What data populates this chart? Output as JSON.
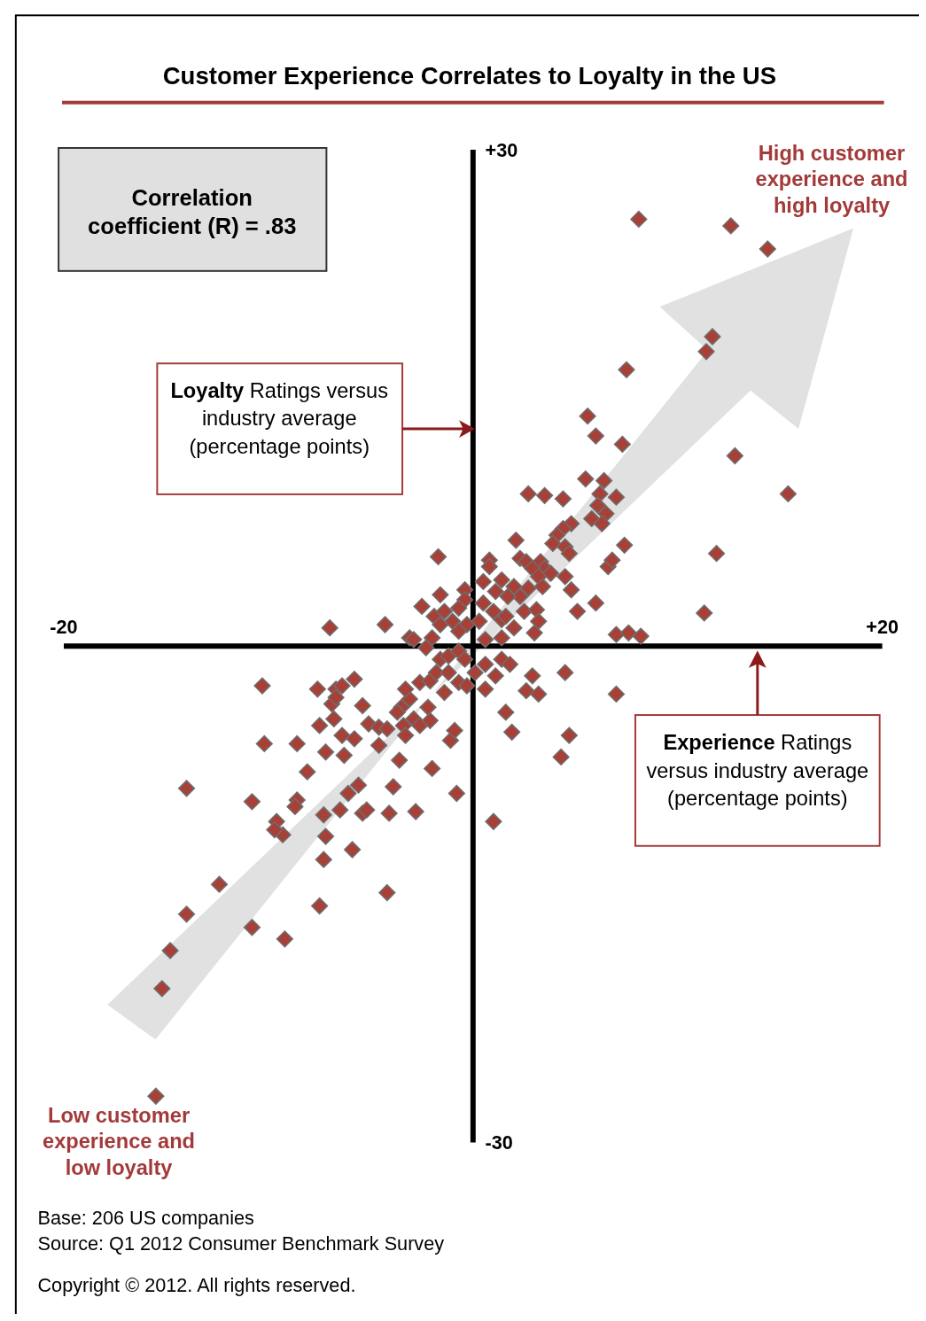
{
  "chart_data": {
    "type": "scatter",
    "title": "Customer Experience Correlates to Loyalty in the US",
    "xlabel": "Experience Ratings versus industry average (percentage points)",
    "ylabel": "Loyalty Ratings versus industry average (percentage points)",
    "xlim": [
      -20,
      20
    ],
    "ylim": [
      -30,
      30
    ],
    "xticks": [
      {
        "value": -20,
        "label": "-20"
      },
      {
        "value": 20,
        "label": "+20"
      }
    ],
    "yticks": [
      {
        "value": -30,
        "label": "-30"
      },
      {
        "value": 30,
        "label": "+30"
      }
    ],
    "marker": "diamond",
    "annotations": [
      "Correlation coefficient (R) = .83",
      "High customer experience and high loyalty",
      "Low customer experience and low loyalty",
      "Base: 206 US companies",
      "Source: Q1 2012 Consumer Benchmark Survey",
      "Copyright © 2012. All rights reserved."
    ],
    "series": [
      {
        "color": "#a84038",
        "x": [
          8.1,
          12.6,
          14.4,
          11.7,
          11.4,
          7.5,
          5.6,
          6.0,
          7.3,
          12.8,
          15.4,
          11.9,
          11.3,
          7.4,
          6.6,
          6.8,
          6.0,
          5.1,
          7.0,
          7.6,
          8.2,
          2.7,
          3.5,
          4.4,
          5.5,
          6.4,
          6.2,
          7.0,
          6.1,
          6.5,
          5.8,
          6.3,
          4.8,
          4.4,
          4.1,
          3.9,
          4.5,
          4.7,
          2.1,
          2.3,
          2.6,
          3.3,
          3.5,
          2.9,
          3.2,
          3.8,
          4.5,
          4.8,
          0.8,
          0.8,
          -1.7,
          0.5,
          1.4,
          2.0,
          2.7,
          3.4,
          2.3,
          1.7,
          1.1,
          0.5,
          1.4,
          -0.4,
          -0.4,
          -0.7,
          -1.6,
          -2.5,
          -1.9,
          -1.4,
          -1.0,
          -0.3,
          0.3,
          1.0,
          1.6,
          2.5,
          3.1,
          3.2,
          3.0,
          2.0,
          1.4,
          0.6,
          -0.7,
          -1.6,
          -2.0,
          -3.1,
          -7.0,
          -4.3,
          -2.9,
          -2.3,
          -10.3,
          -7.6,
          -6.7,
          -6.4,
          -5.8,
          -6.9,
          -6.7,
          -5.4,
          -10.2,
          -8.6,
          -7.5,
          -6.8,
          -6.4,
          -5.8,
          -5.1,
          -4.6,
          -4.2,
          -7.2,
          -6.3,
          -8.1,
          -4.6,
          -3.5,
          -3.1,
          -3.3,
          -2.6,
          -2.1,
          -1.8,
          -1.2,
          -0.7,
          -1.6,
          -1.2,
          -0.7,
          -0.4,
          0.6,
          0.1,
          1.4,
          1.8,
          1.1,
          0.6,
          -0.3,
          -1.4,
          -2.2,
          -2.9,
          -3.4,
          -3.7,
          -2.6,
          -2.1,
          -3.3,
          -3.6,
          -1.1,
          -0.9,
          -2.0,
          -3.9,
          -2.8,
          -0.8,
          1.0,
          1.6,
          1.9,
          2.6,
          2.9,
          3.2,
          4.5,
          4.7,
          4.3,
          7.0,
          -14.0,
          -10.8,
          -8.6,
          -8.7,
          -9.6,
          -9.3,
          -9.7,
          -7.3,
          -7.2,
          -7.3,
          -6.5,
          -6.1,
          -5.6,
          -5.4,
          -5.2,
          -4.1,
          -5.9,
          -12.4,
          -14.0,
          -14.8,
          -15.2,
          -10.8,
          -9.2,
          -7.5,
          -4.2,
          -15.5
        ],
        "values": [
          25.8,
          25.4,
          24.0,
          18.7,
          17.8,
          16.7,
          13.9,
          12.7,
          12.2,
          11.5,
          9.2,
          5.6,
          2.0,
          6.1,
          4.8,
          5.2,
          2.6,
          2.1,
          0.7,
          0.8,
          0.6,
          9.2,
          9.1,
          8.9,
          10.1,
          10.0,
          9.2,
          9.0,
          8.5,
          8.0,
          7.7,
          7.4,
          7.4,
          7.1,
          6.7,
          6.2,
          6.0,
          5.6,
          6.4,
          5.3,
          5.1,
          5.1,
          4.7,
          4.7,
          4.2,
          4.4,
          4.2,
          3.4,
          5.2,
          4.8,
          5.4,
          3.9,
          4.0,
          3.6,
          3.5,
          3.6,
          3.0,
          3.0,
          3.3,
          2.6,
          1.6,
          3.4,
          2.8,
          2.3,
          3.1,
          2.4,
          1.8,
          2.1,
          1.5,
          1.3,
          1.5,
          2.1,
          1.8,
          2.1,
          2.2,
          1.5,
          0.8,
          1.1,
          0.5,
          0.4,
          0.9,
          1.3,
          0.5,
          0.5,
          1.1,
          1.3,
          0.4,
          -0.1,
          -2.4,
          -2.6,
          -2.6,
          -2.4,
          -2.0,
          -3.5,
          -3.1,
          -3.6,
          -5.9,
          -5.9,
          -4.8,
          -4.4,
          -5.4,
          -5.6,
          -4.7,
          -4.9,
          -5.0,
          -6.4,
          -6.6,
          -7.6,
          -6.0,
          -3.7,
          -3.2,
          -2.6,
          -2.2,
          -2.1,
          -1.6,
          -1.6,
          -2.2,
          -0.8,
          -0.6,
          -0.3,
          -0.8,
          -1.1,
          -1.6,
          -0.8,
          -1.1,
          -1.8,
          -2.6,
          -2.4,
          -2.8,
          -3.7,
          -4.4,
          -4.8,
          -4.0,
          -4.8,
          -4.5,
          -5.4,
          -6.9,
          -5.7,
          -5.1,
          -7.4,
          -8.5,
          -10.0,
          -8.9,
          -10.6,
          -4.0,
          -5.2,
          -2.7,
          -1.8,
          -2.9,
          -1.6,
          -5.4,
          -6.7,
          -2.9,
          -8.6,
          -9.4,
          -9.3,
          -9.7,
          -10.6,
          -11.4,
          -11.1,
          -10.2,
          -11.5,
          -12.9,
          -9.9,
          -8.9,
          -8.4,
          -10.1,
          -9.9,
          -10.1,
          -12.3,
          -14.4,
          -16.2,
          -18.4,
          -20.7,
          -17.0,
          -17.7,
          -15.7,
          -14.9,
          -27.2
        ]
      }
    ]
  }
}
